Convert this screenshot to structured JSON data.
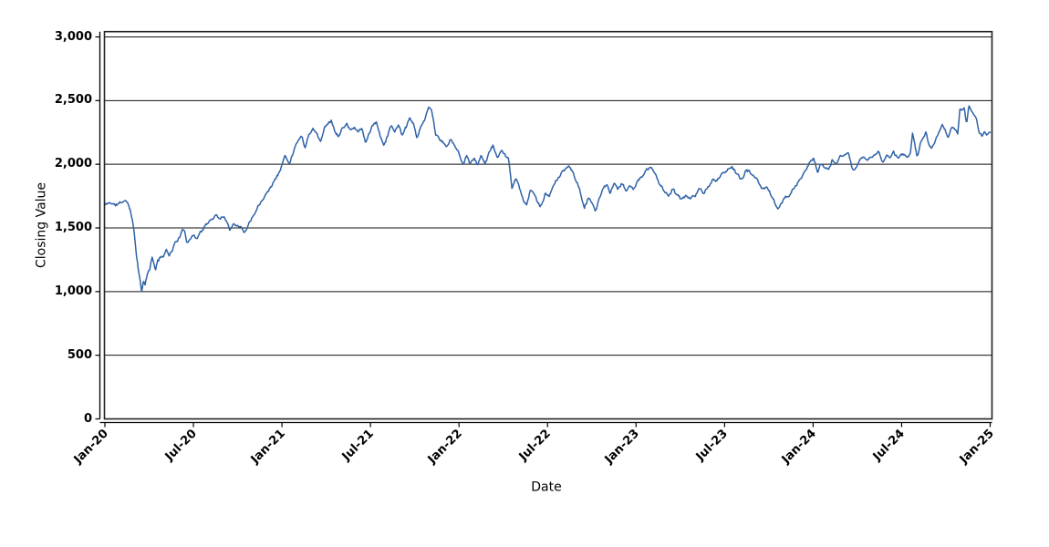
{
  "chart_data": {
    "type": "line",
    "title": "",
    "legend": "none",
    "gridlines": "horizontal-black",
    "x_axis": {
      "label": "Date",
      "tick_labels": [
        "Jan-20",
        "Jul-20",
        "Jan-21",
        "Jul-21",
        "Jan-22",
        "Jul-22",
        "Jan-23",
        "Jul-23",
        "Jan-24",
        "Jul-24",
        "Jan-25"
      ],
      "tick_label_rotation_deg": -45,
      "range_months": [
        0,
        60
      ],
      "x_anchor_unit": "months_since_2020-01"
    },
    "y_axis": {
      "label": "Closing Value",
      "tick_labels": [
        "0",
        "500",
        "1,000",
        "1,500",
        "2,000",
        "2,500",
        "3,000"
      ],
      "tick_values": [
        0,
        500,
        1000,
        1500,
        2000,
        2500,
        3000
      ],
      "ylim": [
        0,
        3000
      ]
    },
    "series": [
      {
        "name": "Closing Value",
        "color": "#2f62a7",
        "anchors": [
          [
            0,
            1680
          ],
          [
            0.35,
            1700
          ],
          [
            0.7,
            1680
          ],
          [
            1.0,
            1690
          ],
          [
            1.3,
            1712
          ],
          [
            1.55,
            1700
          ],
          [
            1.75,
            1640
          ],
          [
            1.95,
            1500
          ],
          [
            2.15,
            1300
          ],
          [
            2.35,
            1105
          ],
          [
            2.5,
            995
          ],
          [
            2.62,
            1090
          ],
          [
            2.72,
            1030
          ],
          [
            2.85,
            1120
          ],
          [
            3.0,
            1160
          ],
          [
            3.2,
            1260
          ],
          [
            3.4,
            1180
          ],
          [
            3.6,
            1230
          ],
          [
            3.8,
            1290
          ],
          [
            4.0,
            1280
          ],
          [
            4.2,
            1330
          ],
          [
            4.4,
            1300
          ],
          [
            4.6,
            1350
          ],
          [
            4.8,
            1395
          ],
          [
            5.0,
            1420
          ],
          [
            5.2,
            1465
          ],
          [
            5.4,
            1480
          ],
          [
            5.55,
            1390
          ],
          [
            5.75,
            1425
          ],
          [
            6.0,
            1445
          ],
          [
            6.2,
            1420
          ],
          [
            6.45,
            1465
          ],
          [
            6.7,
            1500
          ],
          [
            7.0,
            1535
          ],
          [
            7.3,
            1580
          ],
          [
            7.55,
            1605
          ],
          [
            7.8,
            1575
          ],
          [
            8.05,
            1600
          ],
          [
            8.25,
            1560
          ],
          [
            8.45,
            1485
          ],
          [
            8.7,
            1545
          ],
          [
            9.0,
            1530
          ],
          [
            9.2,
            1515
          ],
          [
            9.45,
            1460
          ],
          [
            9.7,
            1530
          ],
          [
            9.95,
            1580
          ],
          [
            10.2,
            1640
          ],
          [
            10.5,
            1700
          ],
          [
            10.8,
            1760
          ],
          [
            11.1,
            1805
          ],
          [
            11.4,
            1855
          ],
          [
            11.7,
            1915
          ],
          [
            12.0,
            1990
          ],
          [
            12.2,
            2070
          ],
          [
            12.5,
            2000
          ],
          [
            12.8,
            2120
          ],
          [
            13.1,
            2200
          ],
          [
            13.35,
            2230
          ],
          [
            13.55,
            2130
          ],
          [
            13.8,
            2230
          ],
          [
            14.1,
            2290
          ],
          [
            14.35,
            2240
          ],
          [
            14.6,
            2180
          ],
          [
            14.9,
            2290
          ],
          [
            15.15,
            2330
          ],
          [
            15.35,
            2350
          ],
          [
            15.6,
            2260
          ],
          [
            15.85,
            2220
          ],
          [
            16.1,
            2280
          ],
          [
            16.4,
            2320
          ],
          [
            16.65,
            2260
          ],
          [
            16.9,
            2285
          ],
          [
            17.15,
            2250
          ],
          [
            17.4,
            2290
          ],
          [
            17.65,
            2170
          ],
          [
            17.9,
            2230
          ],
          [
            18.15,
            2300
          ],
          [
            18.4,
            2320
          ],
          [
            18.65,
            2230
          ],
          [
            18.9,
            2150
          ],
          [
            19.15,
            2230
          ],
          [
            19.4,
            2300
          ],
          [
            19.65,
            2260
          ],
          [
            19.9,
            2320
          ],
          [
            20.15,
            2220
          ],
          [
            20.4,
            2280
          ],
          [
            20.65,
            2350
          ],
          [
            20.9,
            2320
          ],
          [
            21.15,
            2190
          ],
          [
            21.45,
            2290
          ],
          [
            21.7,
            2370
          ],
          [
            21.95,
            2440
          ],
          [
            22.15,
            2420
          ],
          [
            22.4,
            2240
          ],
          [
            22.65,
            2200
          ],
          [
            22.9,
            2170
          ],
          [
            23.15,
            2140
          ],
          [
            23.4,
            2185
          ],
          [
            23.65,
            2160
          ],
          [
            23.85,
            2120
          ],
          [
            24.1,
            2060
          ],
          [
            24.3,
            2000
          ],
          [
            24.5,
            2070
          ],
          [
            24.75,
            2010
          ],
          [
            25.0,
            2050
          ],
          [
            25.25,
            1995
          ],
          [
            25.5,
            2060
          ],
          [
            25.75,
            2020
          ],
          [
            26.0,
            2090
          ],
          [
            26.3,
            2140
          ],
          [
            26.6,
            2060
          ],
          [
            26.9,
            2100
          ],
          [
            27.15,
            2060
          ],
          [
            27.35,
            2040
          ],
          [
            27.6,
            1810
          ],
          [
            27.85,
            1880
          ],
          [
            28.1,
            1800
          ],
          [
            28.35,
            1720
          ],
          [
            28.6,
            1680
          ],
          [
            28.85,
            1810
          ],
          [
            29.1,
            1750
          ],
          [
            29.3,
            1700
          ],
          [
            29.5,
            1665
          ],
          [
            29.7,
            1700
          ],
          [
            29.85,
            1780
          ],
          [
            30.1,
            1760
          ],
          [
            30.35,
            1810
          ],
          [
            30.6,
            1870
          ],
          [
            30.85,
            1910
          ],
          [
            31.1,
            1950
          ],
          [
            31.4,
            1990
          ],
          [
            31.65,
            1950
          ],
          [
            31.9,
            1870
          ],
          [
            32.2,
            1790
          ],
          [
            32.5,
            1655
          ],
          [
            32.75,
            1730
          ],
          [
            33.0,
            1690
          ],
          [
            33.25,
            1640
          ],
          [
            33.5,
            1740
          ],
          [
            33.75,
            1800
          ],
          [
            34.0,
            1830
          ],
          [
            34.25,
            1780
          ],
          [
            34.5,
            1850
          ],
          [
            34.75,
            1800
          ],
          [
            35.0,
            1850
          ],
          [
            35.3,
            1790
          ],
          [
            35.6,
            1840
          ],
          [
            35.85,
            1820
          ],
          [
            36.1,
            1870
          ],
          [
            36.4,
            1900
          ],
          [
            36.7,
            1950
          ],
          [
            37.0,
            1975
          ],
          [
            37.3,
            1930
          ],
          [
            37.6,
            1850
          ],
          [
            37.9,
            1800
          ],
          [
            38.2,
            1760
          ],
          [
            38.5,
            1800
          ],
          [
            38.8,
            1750
          ],
          [
            39.1,
            1725
          ],
          [
            39.4,
            1765
          ],
          [
            39.7,
            1730
          ],
          [
            40.0,
            1755
          ],
          [
            40.3,
            1800
          ],
          [
            40.6,
            1780
          ],
          [
            40.9,
            1820
          ],
          [
            41.2,
            1880
          ],
          [
            41.5,
            1860
          ],
          [
            41.8,
            1920
          ],
          [
            42.1,
            1950
          ],
          [
            42.45,
            1985
          ],
          [
            42.7,
            1955
          ],
          [
            42.95,
            1905
          ],
          [
            43.2,
            1877
          ],
          [
            43.45,
            1945
          ],
          [
            43.7,
            1945
          ],
          [
            44.0,
            1900
          ],
          [
            44.3,
            1850
          ],
          [
            44.6,
            1805
          ],
          [
            44.85,
            1825
          ],
          [
            45.1,
            1765
          ],
          [
            45.35,
            1705
          ],
          [
            45.6,
            1645
          ],
          [
            45.85,
            1690
          ],
          [
            46.1,
            1730
          ],
          [
            46.4,
            1770
          ],
          [
            46.7,
            1810
          ],
          [
            46.95,
            1855
          ],
          [
            47.2,
            1905
          ],
          [
            47.5,
            1960
          ],
          [
            47.8,
            2020
          ],
          [
            48.05,
            2045
          ],
          [
            48.3,
            1940
          ],
          [
            48.55,
            2005
          ],
          [
            48.8,
            1985
          ],
          [
            49.05,
            1955
          ],
          [
            49.3,
            2035
          ],
          [
            49.55,
            1990
          ],
          [
            49.8,
            2045
          ],
          [
            50.1,
            2060
          ],
          [
            50.4,
            2070
          ],
          [
            50.7,
            1950
          ],
          [
            50.95,
            1975
          ],
          [
            51.2,
            2050
          ],
          [
            51.45,
            2070
          ],
          [
            51.7,
            2030
          ],
          [
            51.95,
            2060
          ],
          [
            52.2,
            2075
          ],
          [
            52.45,
            2090
          ],
          [
            52.7,
            2010
          ],
          [
            52.95,
            2070
          ],
          [
            53.2,
            2060
          ],
          [
            53.45,
            2110
          ],
          [
            53.7,
            2050
          ],
          [
            53.95,
            2070
          ],
          [
            54.2,
            2080
          ],
          [
            54.45,
            2060
          ],
          [
            54.6,
            2090
          ],
          [
            54.75,
            2260
          ],
          [
            54.9,
            2150
          ],
          [
            55.05,
            2060
          ],
          [
            55.25,
            2150
          ],
          [
            55.45,
            2215
          ],
          [
            55.65,
            2240
          ],
          [
            55.85,
            2150
          ],
          [
            56.05,
            2120
          ],
          [
            56.25,
            2160
          ],
          [
            56.5,
            2230
          ],
          [
            56.75,
            2295
          ],
          [
            56.95,
            2260
          ],
          [
            57.15,
            2220
          ],
          [
            57.4,
            2300
          ],
          [
            57.6,
            2290
          ],
          [
            57.8,
            2240
          ],
          [
            57.95,
            2430
          ],
          [
            58.1,
            2420
          ],
          [
            58.25,
            2440
          ],
          [
            58.4,
            2310
          ],
          [
            58.55,
            2465
          ],
          [
            58.7,
            2440
          ],
          [
            58.85,
            2400
          ],
          [
            59.05,
            2360
          ],
          [
            59.25,
            2255
          ],
          [
            59.45,
            2215
          ],
          [
            59.6,
            2265
          ],
          [
            59.8,
            2230
          ],
          [
            60.0,
            2245
          ]
        ]
      }
    ]
  }
}
